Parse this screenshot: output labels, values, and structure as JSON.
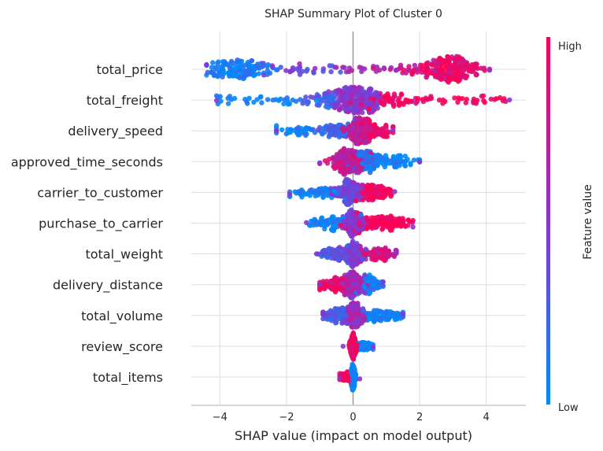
{
  "chart_data": {
    "type": "scatter",
    "subtype": "shap-beeswarm",
    "title": "SHAP Summary Plot of Cluster 0",
    "xlabel": "SHAP value (impact on model output)",
    "xlim": [
      -4.9,
      5.2
    ],
    "xticks": [
      -4,
      -2,
      0,
      2,
      4
    ],
    "xtick_labels": [
      "−4",
      "−2",
      "0",
      "2",
      "4"
    ],
    "grid": true,
    "colorbar": {
      "label": "Feature value",
      "high_label": "High",
      "low_label": "Low",
      "low_color": "#008bfb",
      "mid_color": "#8a34d0",
      "high_color": "#ff0052",
      "placement": "right"
    },
    "features": [
      {
        "name": "total_price",
        "min": -4.4,
        "max": 4.1,
        "clusters": [
          {
            "center": -3.5,
            "spread": 0.45,
            "weight": 0.33,
            "feature_value": 0.05
          },
          {
            "center": -2.0,
            "spread": 0.9,
            "weight": 0.1,
            "feature_value": 0.35
          },
          {
            "center": 0.0,
            "spread": 1.2,
            "weight": 0.08,
            "feature_value": 0.55
          },
          {
            "center": 2.0,
            "spread": 0.5,
            "weight": 0.12,
            "feature_value": 0.85
          },
          {
            "center": 3.0,
            "spread": 0.4,
            "weight": 0.37,
            "feature_value": 0.9
          }
        ]
      },
      {
        "name": "total_freight",
        "min": -4.1,
        "max": 4.7,
        "clusters": [
          {
            "center": -2.5,
            "spread": 1.0,
            "weight": 0.08,
            "feature_value": 0.02
          },
          {
            "center": -0.8,
            "spread": 0.5,
            "weight": 0.12,
            "feature_value": 0.25
          },
          {
            "center": 0.05,
            "spread": 0.35,
            "weight": 0.55,
            "feature_value": 0.5
          },
          {
            "center": 1.0,
            "spread": 0.5,
            "weight": 0.15,
            "feature_value": 0.92
          },
          {
            "center": 3.0,
            "spread": 1.0,
            "weight": 0.1,
            "feature_value": 0.98
          }
        ]
      },
      {
        "name": "delivery_speed",
        "min": -2.3,
        "max": 1.2,
        "clusters": [
          {
            "center": -1.5,
            "spread": 0.5,
            "weight": 0.1,
            "feature_value": 0.05
          },
          {
            "center": -0.4,
            "spread": 0.3,
            "weight": 0.2,
            "feature_value": 0.25
          },
          {
            "center": 0.2,
            "spread": 0.2,
            "weight": 0.55,
            "feature_value": 0.75
          },
          {
            "center": 0.7,
            "spread": 0.25,
            "weight": 0.15,
            "feature_value": 0.95
          }
        ]
      },
      {
        "name": "approved_time_seconds",
        "min": -1.0,
        "max": 2.0,
        "clusters": [
          {
            "center": -0.15,
            "spread": 0.25,
            "weight": 0.55,
            "feature_value": 0.75
          },
          {
            "center": 0.4,
            "spread": 0.25,
            "weight": 0.3,
            "feature_value": 0.15
          },
          {
            "center": 1.2,
            "spread": 0.4,
            "weight": 0.15,
            "feature_value": 0.02
          }
        ]
      },
      {
        "name": "carrier_to_customer",
        "min": -1.9,
        "max": 1.25,
        "clusters": [
          {
            "center": -1.0,
            "spread": 0.45,
            "weight": 0.15,
            "feature_value": 0.05
          },
          {
            "center": -0.1,
            "spread": 0.2,
            "weight": 0.5,
            "feature_value": 0.4
          },
          {
            "center": 0.6,
            "spread": 0.3,
            "weight": 0.35,
            "feature_value": 0.95
          }
        ]
      },
      {
        "name": "purchase_to_carrier",
        "min": -1.4,
        "max": 1.8,
        "clusters": [
          {
            "center": -0.7,
            "spread": 0.35,
            "weight": 0.2,
            "feature_value": 0.05
          },
          {
            "center": 0.0,
            "spread": 0.15,
            "weight": 0.5,
            "feature_value": 0.5
          },
          {
            "center": 0.9,
            "spread": 0.45,
            "weight": 0.3,
            "feature_value": 0.98
          }
        ]
      },
      {
        "name": "total_weight",
        "min": -1.1,
        "max": 1.3,
        "clusters": [
          {
            "center": -0.5,
            "spread": 0.3,
            "weight": 0.25,
            "feature_value": 0.3
          },
          {
            "center": 0.0,
            "spread": 0.15,
            "weight": 0.5,
            "feature_value": 0.45
          },
          {
            "center": 0.7,
            "spread": 0.3,
            "weight": 0.25,
            "feature_value": 0.8
          }
        ]
      },
      {
        "name": "delivery_distance",
        "min": -1.0,
        "max": 0.9,
        "clusters": [
          {
            "center": -0.5,
            "spread": 0.25,
            "weight": 0.25,
            "feature_value": 0.92
          },
          {
            "center": 0.0,
            "spread": 0.15,
            "weight": 0.5,
            "feature_value": 0.6
          },
          {
            "center": 0.45,
            "spread": 0.2,
            "weight": 0.25,
            "feature_value": 0.08
          }
        ]
      },
      {
        "name": "total_volume",
        "min": -0.9,
        "max": 1.5,
        "clusters": [
          {
            "center": -0.4,
            "spread": 0.25,
            "weight": 0.25,
            "feature_value": 0.3
          },
          {
            "center": 0.05,
            "spread": 0.15,
            "weight": 0.5,
            "feature_value": 0.6
          },
          {
            "center": 0.9,
            "spread": 0.35,
            "weight": 0.25,
            "feature_value": 0.03
          }
        ]
      },
      {
        "name": "review_score",
        "min": -0.3,
        "max": 0.6,
        "clusters": [
          {
            "center": 0.0,
            "spread": 0.05,
            "weight": 0.75,
            "feature_value": 0.95
          },
          {
            "center": 0.35,
            "spread": 0.12,
            "weight": 0.25,
            "feature_value": 0.05
          }
        ]
      },
      {
        "name": "total_items",
        "min": -0.4,
        "max": 0.2,
        "clusters": [
          {
            "center": -0.2,
            "spread": 0.1,
            "weight": 0.2,
            "feature_value": 0.95
          },
          {
            "center": 0.0,
            "spread": 0.03,
            "weight": 0.8,
            "feature_value": 0.03
          }
        ]
      }
    ]
  }
}
